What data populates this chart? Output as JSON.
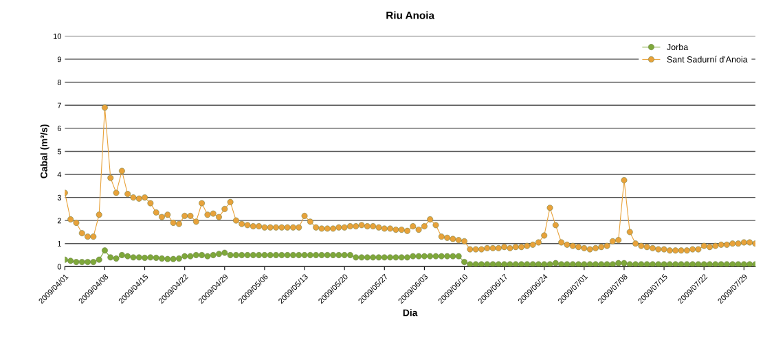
{
  "chart_data": {
    "type": "line",
    "title": "Riu Anoia",
    "xlabel": "Dia",
    "ylabel": "Cabal (m³/s)",
    "x": [
      "2009-04-01",
      "2009-04-02",
      "2009-04-03",
      "2009-04-04",
      "2009-04-05",
      "2009-04-06",
      "2009-04-07",
      "2009-04-08",
      "2009-04-09",
      "2009-04-10",
      "2009-04-11",
      "2009-04-12",
      "2009-04-13",
      "2009-04-14",
      "2009-04-15",
      "2009-04-16",
      "2009-04-17",
      "2009-04-18",
      "2009-04-19",
      "2009-04-20",
      "2009-04-21",
      "2009-04-22",
      "2009-04-23",
      "2009-04-24",
      "2009-04-25",
      "2009-04-26",
      "2009-04-27",
      "2009-04-28",
      "2009-04-29",
      "2009-04-30",
      "2009-05-01",
      "2009-05-02",
      "2009-05-03",
      "2009-05-04",
      "2009-05-05",
      "2009-05-06",
      "2009-05-07",
      "2009-05-08",
      "2009-05-09",
      "2009-05-10",
      "2009-05-11",
      "2009-05-12",
      "2009-05-13",
      "2009-05-14",
      "2009-05-15",
      "2009-05-16",
      "2009-05-17",
      "2009-05-18",
      "2009-05-19",
      "2009-05-20",
      "2009-05-21",
      "2009-05-22",
      "2009-05-23",
      "2009-05-24",
      "2009-05-25",
      "2009-05-26",
      "2009-05-27",
      "2009-05-28",
      "2009-05-29",
      "2009-05-30",
      "2009-05-31",
      "2009-06-01",
      "2009-06-02",
      "2009-06-03",
      "2009-06-04",
      "2009-06-05",
      "2009-06-06",
      "2009-06-07",
      "2009-06-08",
      "2009-06-09",
      "2009-06-10",
      "2009-06-11",
      "2009-06-12",
      "2009-06-13",
      "2009-06-14",
      "2009-06-15",
      "2009-06-16",
      "2009-06-17",
      "2009-06-18",
      "2009-06-19",
      "2009-06-20",
      "2009-06-21",
      "2009-06-22",
      "2009-06-23",
      "2009-06-24",
      "2009-06-25",
      "2009-06-26",
      "2009-06-27",
      "2009-06-28",
      "2009-06-29",
      "2009-06-30",
      "2009-07-01",
      "2009-07-02",
      "2009-07-03",
      "2009-07-04",
      "2009-07-05",
      "2009-07-06",
      "2009-07-07",
      "2009-07-08",
      "2009-07-09",
      "2009-07-10",
      "2009-07-11",
      "2009-07-12",
      "2009-07-13",
      "2009-07-14",
      "2009-07-15",
      "2009-07-16",
      "2009-07-17",
      "2009-07-18",
      "2009-07-19",
      "2009-07-20",
      "2009-07-21",
      "2009-07-22",
      "2009-07-23",
      "2009-07-24",
      "2009-07-25",
      "2009-07-26",
      "2009-07-27",
      "2009-07-28",
      "2009-07-29",
      "2009-07-30",
      "2009-07-31"
    ],
    "series": [
      {
        "name": "Jorba",
        "color": "#7ea83a",
        "values": [
          0.3,
          0.25,
          0.2,
          0.2,
          0.2,
          0.2,
          0.3,
          0.7,
          0.4,
          0.35,
          0.5,
          0.45,
          0.4,
          0.4,
          0.38,
          0.4,
          0.38,
          0.35,
          0.33,
          0.33,
          0.35,
          0.45,
          0.45,
          0.5,
          0.5,
          0.45,
          0.5,
          0.55,
          0.6,
          0.5,
          0.5,
          0.5,
          0.5,
          0.5,
          0.5,
          0.5,
          0.5,
          0.5,
          0.5,
          0.5,
          0.5,
          0.5,
          0.5,
          0.5,
          0.5,
          0.5,
          0.5,
          0.5,
          0.5,
          0.5,
          0.5,
          0.4,
          0.4,
          0.4,
          0.4,
          0.4,
          0.4,
          0.4,
          0.4,
          0.4,
          0.4,
          0.45,
          0.45,
          0.45,
          0.45,
          0.45,
          0.45,
          0.45,
          0.45,
          0.45,
          0.2,
          0.1,
          0.1,
          0.1,
          0.1,
          0.1,
          0.1,
          0.1,
          0.1,
          0.1,
          0.1,
          0.1,
          0.1,
          0.1,
          0.1,
          0.1,
          0.15,
          0.1,
          0.1,
          0.1,
          0.1,
          0.1,
          0.1,
          0.1,
          0.1,
          0.1,
          0.1,
          0.15,
          0.15,
          0.1,
          0.1,
          0.1,
          0.1,
          0.1,
          0.1,
          0.1,
          0.1,
          0.1,
          0.1,
          0.1,
          0.1,
          0.1,
          0.1,
          0.1,
          0.1,
          0.1,
          0.1,
          0.1,
          0.1,
          0.1,
          0.1,
          0.1
        ]
      },
      {
        "name": "Sant Sadurní d'Anoia",
        "color": "#e8a23a",
        "values": [
          3.2,
          2.05,
          1.9,
          1.45,
          1.3,
          1.3,
          2.25,
          6.9,
          3.85,
          3.2,
          4.15,
          3.15,
          3.0,
          2.95,
          3.0,
          2.75,
          2.35,
          2.15,
          2.25,
          1.9,
          1.85,
          2.2,
          2.2,
          1.95,
          2.75,
          2.25,
          2.3,
          2.15,
          2.5,
          2.8,
          2.0,
          1.85,
          1.8,
          1.75,
          1.75,
          1.7,
          1.7,
          1.7,
          1.7,
          1.7,
          1.7,
          1.7,
          2.2,
          1.95,
          1.7,
          1.65,
          1.65,
          1.65,
          1.7,
          1.7,
          1.75,
          1.75,
          1.8,
          1.75,
          1.75,
          1.7,
          1.65,
          1.65,
          1.6,
          1.6,
          1.55,
          1.75,
          1.6,
          1.75,
          2.05,
          1.8,
          1.3,
          1.25,
          1.2,
          1.15,
          1.1,
          0.75,
          0.75,
          0.75,
          0.8,
          0.8,
          0.8,
          0.85,
          0.8,
          0.85,
          0.85,
          0.9,
          0.95,
          1.05,
          1.35,
          2.55,
          1.8,
          1.05,
          0.95,
          0.9,
          0.85,
          0.8,
          0.75,
          0.8,
          0.85,
          0.9,
          1.1,
          1.15,
          3.75,
          1.5,
          1.0,
          0.9,
          0.85,
          0.8,
          0.75,
          0.75,
          0.7,
          0.7,
          0.7,
          0.7,
          0.75,
          0.75,
          0.9,
          0.85,
          0.9,
          0.95,
          0.95,
          1.0,
          1.0,
          1.05,
          1.05,
          1.0
        ]
      }
    ],
    "xlim": [
      "2009-04-01",
      "2009-07-31"
    ],
    "xticks": [
      {
        "value": "2009-04-01",
        "label": "2009/04/01"
      },
      {
        "value": "2009-04-08",
        "label": "2009/04/08"
      },
      {
        "value": "2009-04-15",
        "label": "2009/04/15"
      },
      {
        "value": "2009-04-22",
        "label": "2009/04/22"
      },
      {
        "value": "2009-04-29",
        "label": "2009/04/29"
      },
      {
        "value": "2009-05-06",
        "label": "2009/05/06"
      },
      {
        "value": "2009-05-13",
        "label": "2009/05/13"
      },
      {
        "value": "2009-05-20",
        "label": "2009/05/20"
      },
      {
        "value": "2009-05-27",
        "label": "2009/05/27"
      },
      {
        "value": "2009-06-03",
        "label": "2009/06/03"
      },
      {
        "value": "2009-06-10",
        "label": "2009/06/10"
      },
      {
        "value": "2009-06-17",
        "label": "2009/06/17"
      },
      {
        "value": "2009-06-24",
        "label": "2009/06/24"
      },
      {
        "value": "2009-07-01",
        "label": "2009/07/01"
      },
      {
        "value": "2009-07-08",
        "label": "2009/07/08"
      },
      {
        "value": "2009-07-15",
        "label": "2009/07/15"
      },
      {
        "value": "2009-07-22",
        "label": "2009/07/22"
      },
      {
        "value": "2009-07-29",
        "label": "2009/07/29"
      }
    ],
    "ylim": [
      0,
      10
    ],
    "yticks": [
      0,
      1,
      2,
      3,
      4,
      5,
      6,
      7,
      8,
      9,
      10
    ],
    "grid": "y",
    "legend": "top right",
    "marker": "circle",
    "line_style": "solid"
  }
}
